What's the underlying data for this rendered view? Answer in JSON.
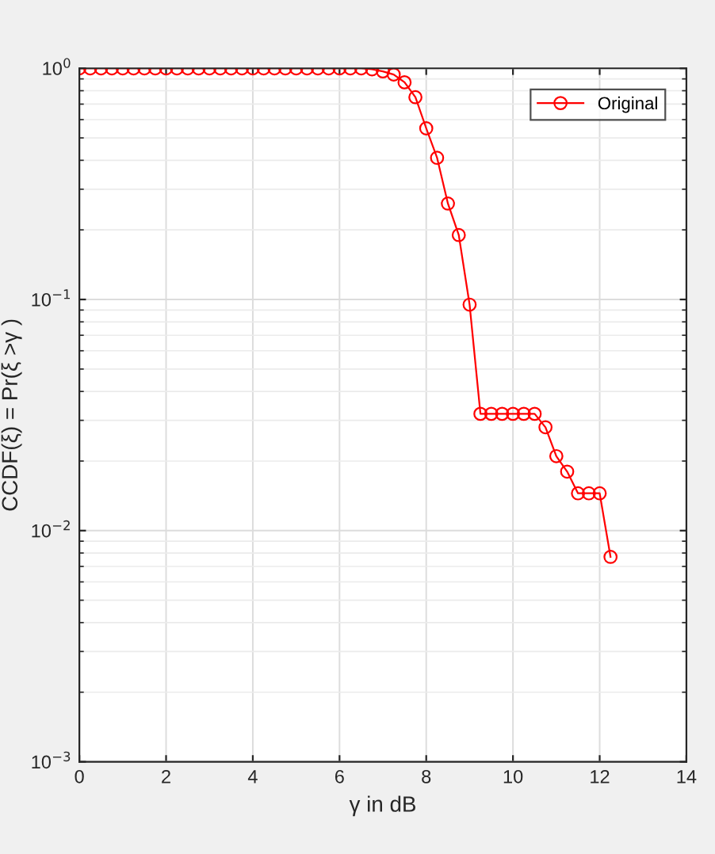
{
  "chart_data": {
    "type": "line",
    "xlabel": "γ in dB",
    "ylabel": "CCDF(ξ) = Pr(ξ >γ )",
    "log": "y",
    "grid": true,
    "legend": "top right",
    "marker": "circle",
    "line_style": "solid",
    "xlim": [
      0,
      14
    ],
    "xticks": [
      0,
      2,
      4,
      6,
      8,
      10,
      12,
      14
    ],
    "ylim": [
      0.001,
      1
    ],
    "yticks": [
      {
        "value": 0.001,
        "label": "10$^{−3}$"
      },
      {
        "value": 0.01,
        "label": "10$^{−2}$"
      },
      {
        "value": 0.1,
        "label": "10$^{−1}$"
      },
      {
        "value": 1,
        "label": "10$^{0}$"
      }
    ],
    "x": [
      0,
      0.25,
      0.5,
      0.75,
      1,
      1.25,
      1.5,
      1.75,
      2,
      2.25,
      2.5,
      2.75,
      3,
      3.25,
      3.5,
      3.75,
      4,
      4.25,
      4.5,
      4.75,
      5,
      5.25,
      5.5,
      5.75,
      6,
      6.25,
      6.5,
      6.75,
      7,
      7.25,
      7.5,
      7.75,
      8,
      8.25,
      8.5,
      8.75,
      9,
      9.25,
      9.5,
      9.75,
      10,
      10.25,
      10.5,
      10.75,
      11,
      11.25,
      11.5,
      11.75,
      12,
      12.25
    ],
    "series": [
      {
        "name": "Original",
        "color": "#ff0000",
        "values": [
          1,
          1,
          1,
          1,
          1,
          1,
          1,
          1,
          1,
          1,
          1,
          1,
          1,
          1,
          1,
          1,
          1,
          1,
          1,
          1,
          1,
          1,
          1,
          1,
          1,
          1,
          1,
          0.99,
          0.97,
          0.94,
          0.87,
          0.75,
          0.55,
          0.41,
          0.26,
          0.19,
          0.095,
          0.032,
          0.032,
          0.032,
          0.032,
          0.032,
          0.032,
          0.028,
          0.021,
          0.018,
          0.0145,
          0.0145,
          0.0145,
          0.0077
        ]
      }
    ]
  }
}
